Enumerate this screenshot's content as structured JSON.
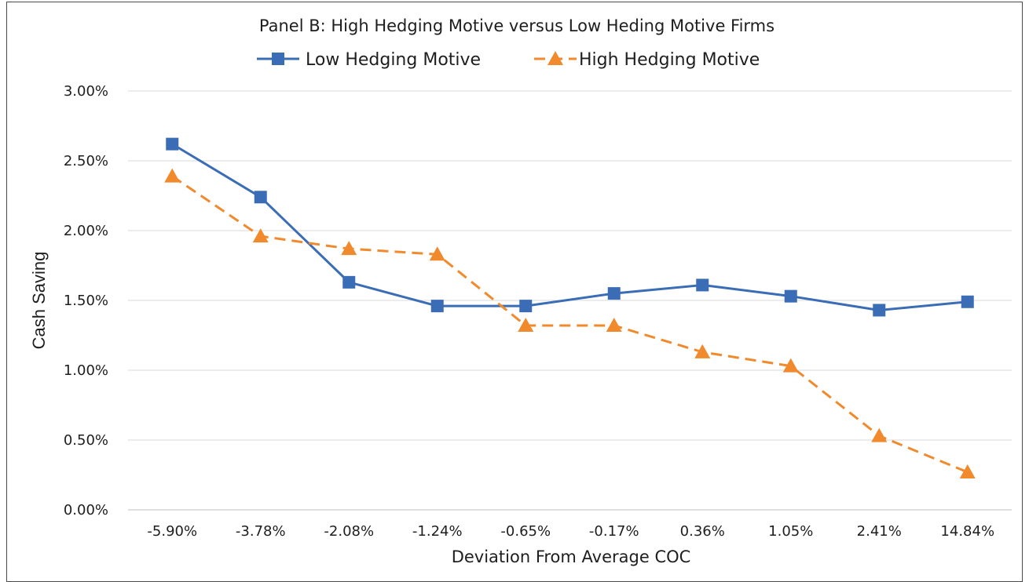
{
  "chart_data": {
    "type": "line",
    "title": "Panel B: High Hedging Motive versus Low Heding Motive Firms",
    "xlabel": "Deviation From Average COC",
    "ylabel": "Cash Saving",
    "categories": [
      "-5.90%",
      "-3.78%",
      "-2.08%",
      "-1.24%",
      "-0.65%",
      "-0.17%",
      "0.36%",
      "1.05%",
      "2.41%",
      "14.84%"
    ],
    "y_ticks": [
      "0.00%",
      "0.50%",
      "1.00%",
      "1.50%",
      "2.00%",
      "2.50%",
      "3.00%"
    ],
    "ylim": [
      0,
      3.0
    ],
    "grid": true,
    "legend_position": "top",
    "series": [
      {
        "name": "Low Hedging Motive",
        "color": "#3a6db5",
        "style": "solid",
        "marker": "square",
        "values": [
          2.62,
          2.24,
          1.63,
          1.46,
          1.46,
          1.55,
          1.61,
          1.53,
          1.43,
          1.49
        ]
      },
      {
        "name": "High Hedging Motive",
        "color": "#f08a2d",
        "style": "dashed",
        "marker": "triangle",
        "values": [
          2.39,
          1.96,
          1.87,
          1.83,
          1.32,
          1.32,
          1.13,
          1.03,
          0.53,
          0.27
        ]
      }
    ]
  }
}
